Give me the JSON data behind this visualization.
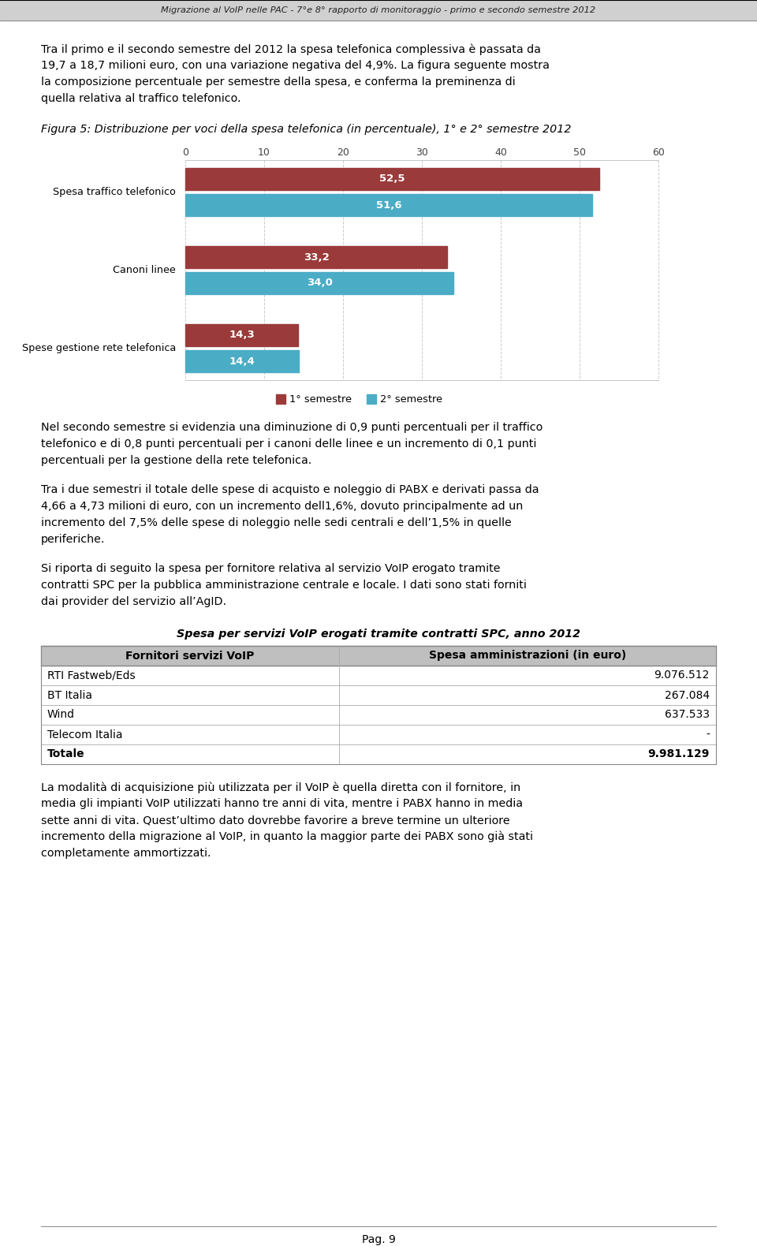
{
  "header_text": "Migrazione al VoIP nelle PAC - 7°e 8° rapporto di monitoraggio - primo e secondo semestre 2012",
  "fig_caption": "Figura 5: Distribuzione per voci della spesa telefonica (in percentuale), 1° e 2° semestre 2012",
  "chart": {
    "categories": [
      "Spesa traffico telefonico",
      "Canoni linee",
      "Spese gestione rete telefonica"
    ],
    "sem1_values": [
      52.5,
      33.2,
      14.3
    ],
    "sem2_values": [
      51.6,
      34.0,
      14.4
    ],
    "sem1_color": "#9b3a3a",
    "sem2_color": "#4bacc6",
    "legend_sem1": "1° semestre",
    "legend_sem2": "2° semestre"
  },
  "table_title": "Spesa per servizi VoIP erogati tramite contratti SPC, anno 2012",
  "table_headers": [
    "Fornitori servizi VoIP",
    "Spesa amministrazioni (in euro)"
  ],
  "table_rows": [
    [
      "RTI Fastweb/Eds",
      "9.076.512"
    ],
    [
      "BT Italia",
      "267.084"
    ],
    [
      "Wind",
      "637.533"
    ],
    [
      "Telecom Italia",
      "-"
    ],
    [
      "Totale",
      "9.981.129"
    ]
  ],
  "footer_text": "Pag. 9",
  "bg_color": "#ffffff",
  "text_color": "#000000"
}
